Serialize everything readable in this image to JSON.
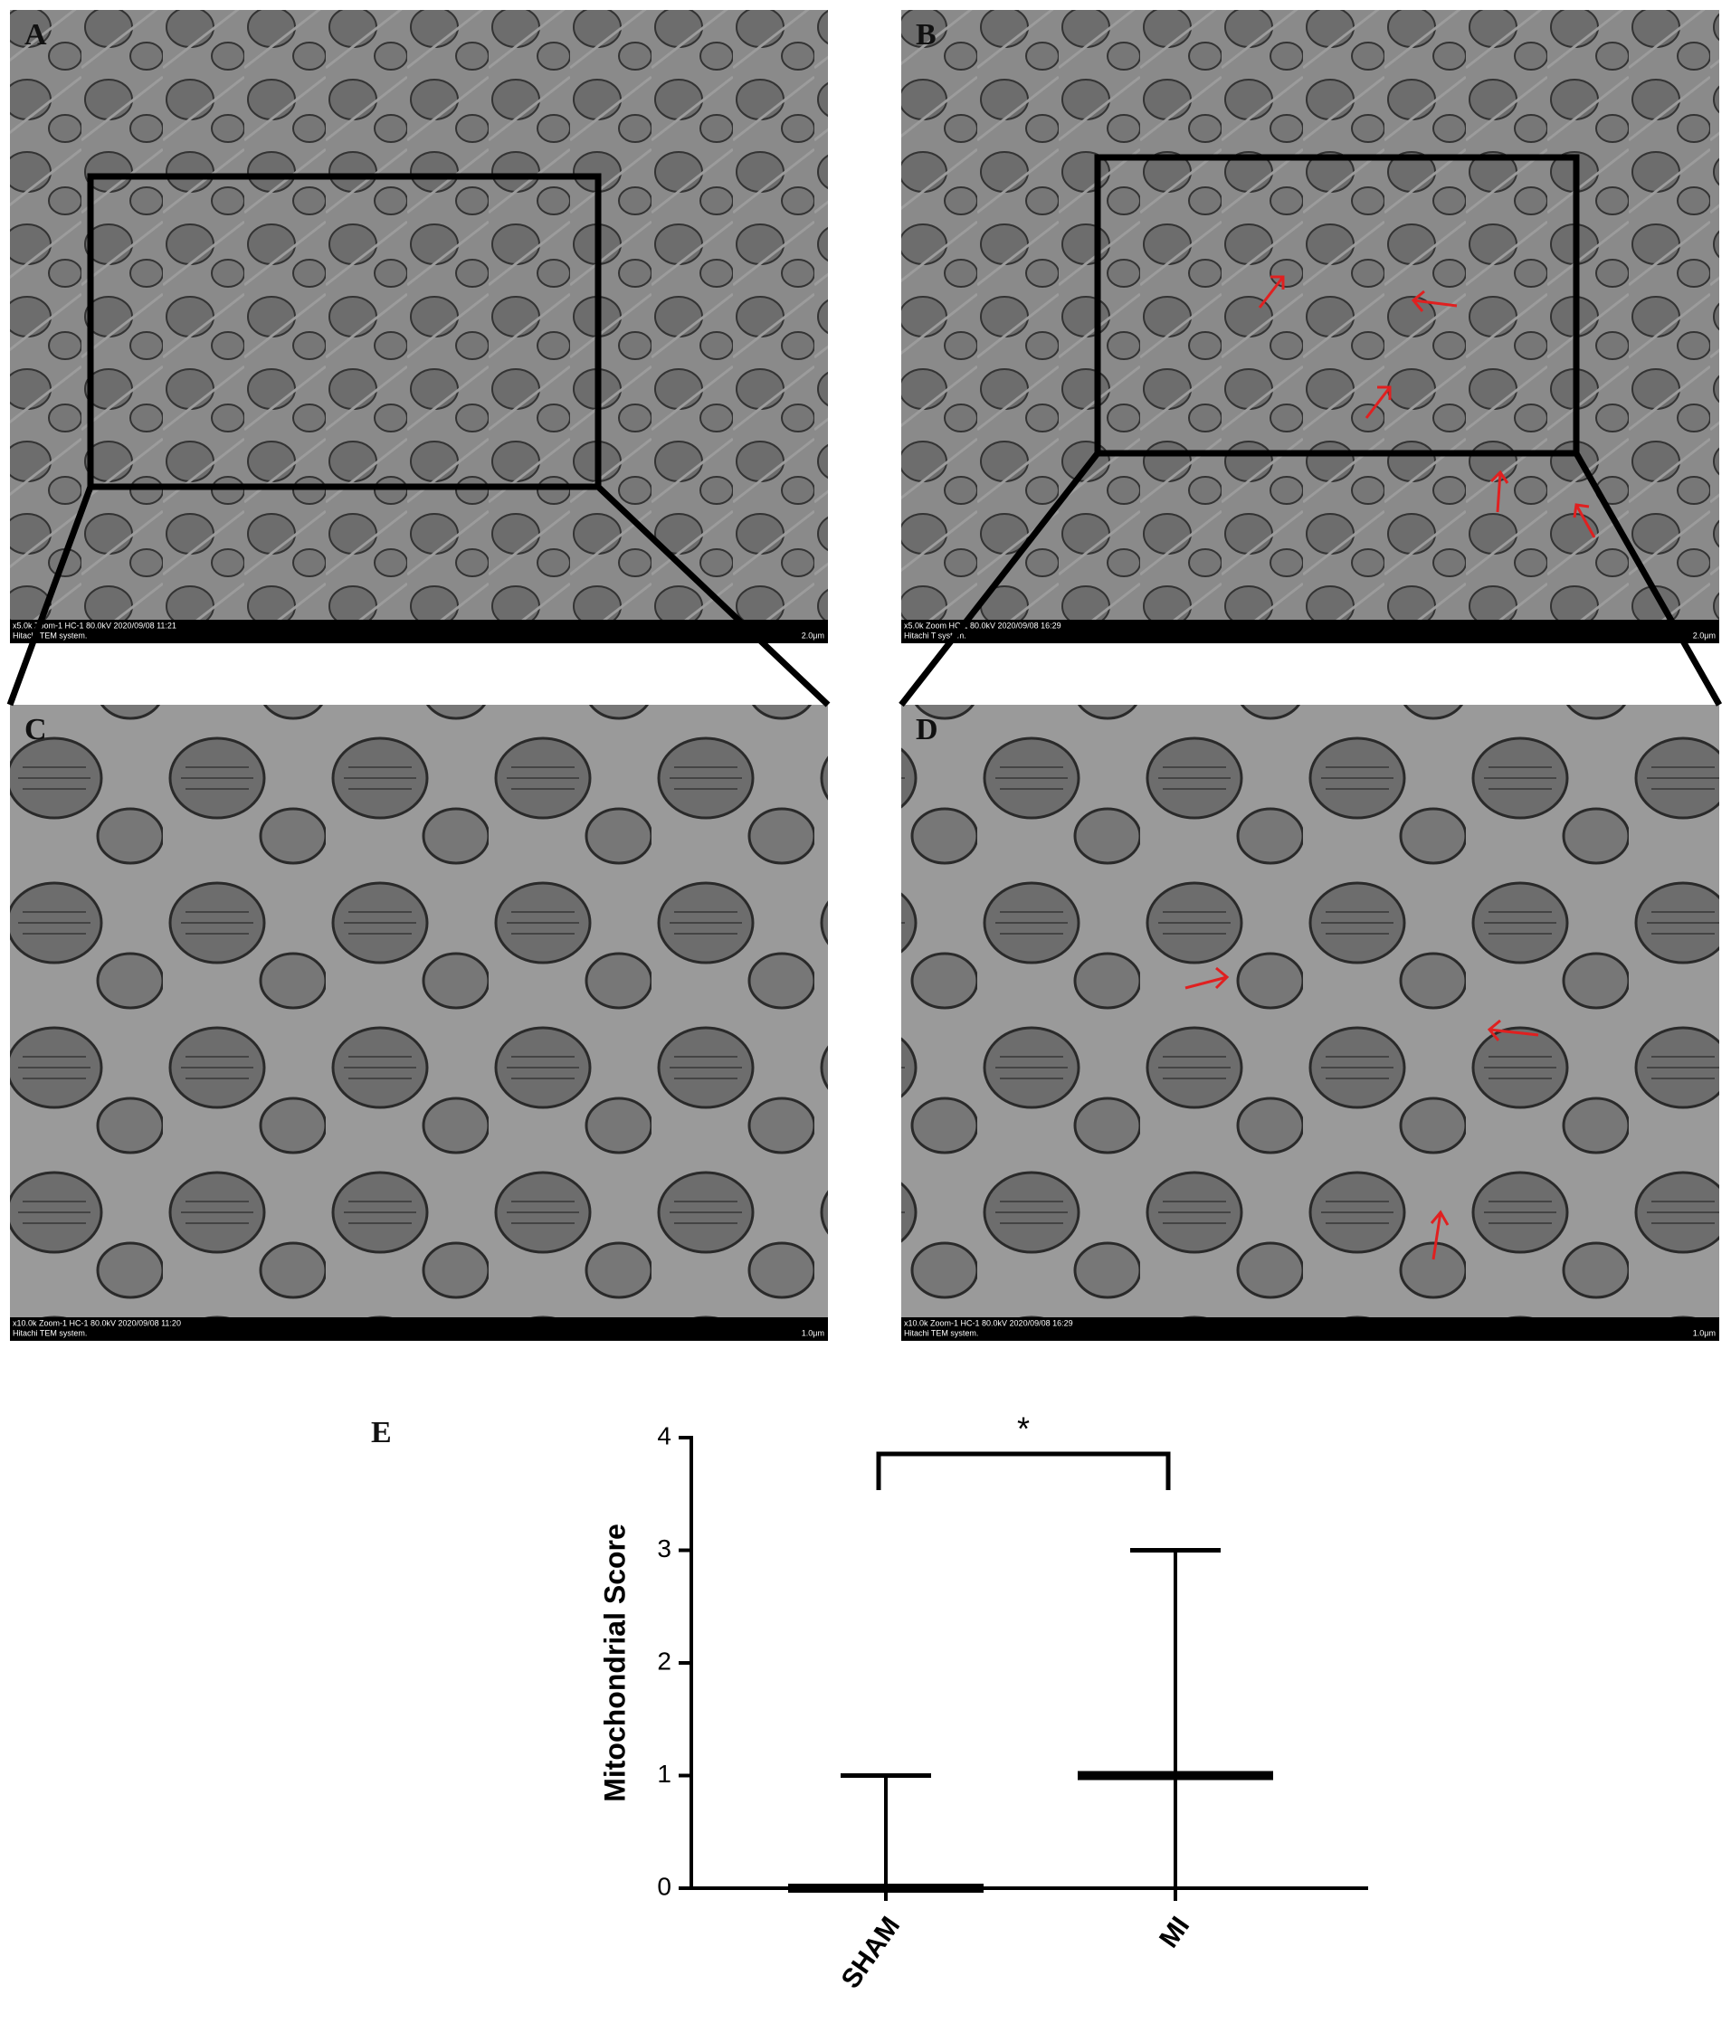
{
  "panels": [
    {
      "label": "A",
      "info": "x5.0k Zoom-1 HC-1 80.0kV 2020/09/08 11:21",
      "system": "Hitachi TEM system.",
      "scale": "2.0μm"
    },
    {
      "label": "B",
      "info": "x5.0k Zoom HC-1 80.0kV 2020/09/08 16:29",
      "system": "Hitachi T system.",
      "scale": "2.0μm"
    },
    {
      "label": "C",
      "info": "x10.0k Zoom-1 HC-1 80.0kV 2020/09/08 11:20",
      "system": "Hitachi TEM system.",
      "scale": "1.0μm"
    },
    {
      "label": "D",
      "info": "x10.0k Zoom-1 HC-1 80.0kV 2020/09/08 16:29",
      "system": "Hitachi TEM system.",
      "scale": "1.0μm"
    }
  ],
  "chart_data": {
    "type": "range",
    "panel_label": "E",
    "y_label": "Mitochondrial Score",
    "categories": [
      "SHAM",
      "MI"
    ],
    "median": [
      0,
      1
    ],
    "min": [
      0,
      0
    ],
    "max": [
      1,
      3
    ],
    "ylim": [
      0,
      4
    ],
    "yticks": [
      0,
      1,
      2,
      3,
      4
    ],
    "significance": "*",
    "color": "#000000"
  }
}
